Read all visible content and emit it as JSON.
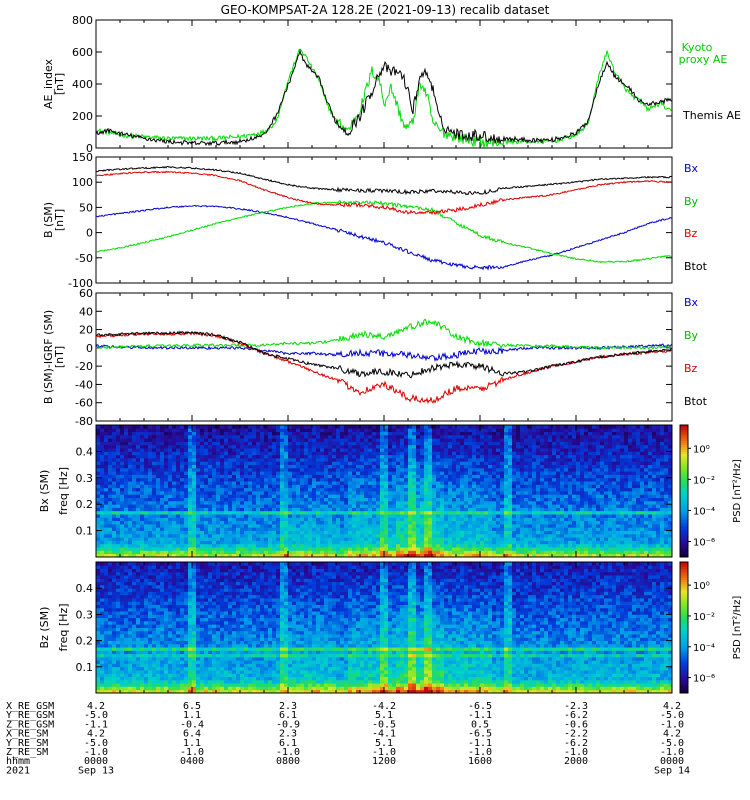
{
  "title": "GEO-KOMPSAT-2A 128.2E (2021-09-13) recalib dataset",
  "colors": {
    "black": "#000000",
    "green": "#00dd00",
    "red": "#dd0000",
    "blue": "#0000cc",
    "kyoto_label": "#00cc00",
    "by_label": "#00bb00",
    "bx_label": "#0000cc",
    "bz_label": "#dd0000"
  },
  "x_axis": {
    "range_hours": [
      0,
      24
    ],
    "tick_hours": [
      0,
      4,
      8,
      12,
      16,
      20,
      24
    ]
  },
  "ephemeris": {
    "rows": [
      {
        "label": "X_RE_GSM",
        "values": [
          "4.2",
          "6.5",
          "2.3",
          "-4.2",
          "-6.5",
          "-2.3",
          "4.2"
        ]
      },
      {
        "label": "Y_RE_GSM",
        "values": [
          "-5.0",
          "1.1",
          "6.1",
          "5.1",
          "-1.1",
          "-6.2",
          "-5.0"
        ]
      },
      {
        "label": "Z_RE_GSM",
        "values": [
          "-1.1",
          "-0.4",
          "-0.9",
          "-0.5",
          "0.5",
          "-0.6",
          "-1.0"
        ]
      },
      {
        "label": "X_RE_SM",
        "values": [
          "4.2",
          "6.4",
          "2.3",
          "-4.1",
          "-6.5",
          "-2.2",
          "4.2"
        ]
      },
      {
        "label": "Y_RE_SM",
        "values": [
          "-5.0",
          "1.1",
          "6.1",
          "5.1",
          "-1.1",
          "-6.2",
          "-5.0"
        ]
      },
      {
        "label": "Z_RE_SM",
        "values": [
          "-1.0",
          "-1.0",
          "-1.0",
          "-1.0",
          "-1.0",
          "-1.0",
          "-1.0"
        ]
      },
      {
        "label": "hhmm",
        "values": [
          "0000",
          "0400",
          "0800",
          "1200",
          "1600",
          "2000",
          "0000"
        ]
      }
    ],
    "year_label": "2021",
    "date_left": "Sep 13",
    "date_right": "Sep 14"
  },
  "chart_data": [
    {
      "type": "line",
      "ylabel": "AE_index",
      "yunit": "[nT]",
      "ylim": [
        0,
        800
      ],
      "yticks": [
        0,
        200,
        400,
        600,
        800
      ],
      "x_hours": [
        0,
        0.5,
        1,
        2,
        3,
        4,
        5,
        6,
        7,
        7.5,
        8,
        8.5,
        8.75,
        9,
        9.3,
        9.6,
        10,
        10.5,
        11,
        11.5,
        11.8,
        12,
        12.3,
        12.6,
        12.9,
        13.2,
        13.5,
        13.8,
        14,
        14.3,
        14.6,
        15,
        15.5,
        16,
        16.5,
        17,
        18,
        19,
        20,
        20.5,
        21,
        21.3,
        21.6,
        22,
        22.3,
        22.6,
        23,
        23.5,
        24
      ],
      "series": [
        {
          "name": "Kyoto proxy AE",
          "color": "#00dd00",
          "values": [
            110,
            100,
            80,
            70,
            60,
            60,
            60,
            70,
            100,
            160,
            420,
            620,
            570,
            500,
            420,
            280,
            170,
            110,
            240,
            480,
            430,
            280,
            380,
            240,
            120,
            160,
            410,
            330,
            170,
            110,
            90,
            70,
            50,
            40,
            30,
            40,
            40,
            40,
            80,
            150,
            480,
            600,
            480,
            380,
            330,
            300,
            240,
            280,
            220
          ]
        },
        {
          "name": "Themis AE",
          "color": "#000000",
          "values": [
            90,
            110,
            90,
            60,
            40,
            30,
            30,
            40,
            80,
            200,
            390,
            600,
            520,
            480,
            430,
            300,
            160,
            100,
            200,
            360,
            470,
            510,
            470,
            480,
            410,
            230,
            450,
            470,
            390,
            180,
            120,
            90,
            80,
            80,
            60,
            60,
            50,
            50,
            90,
            170,
            430,
            540,
            450,
            400,
            360,
            300,
            270,
            290,
            300
          ]
        }
      ]
    },
    {
      "type": "line",
      "ylabel": "B (SM)",
      "yunit": "[nT]",
      "ylim": [
        -100,
        150
      ],
      "yticks": [
        -100,
        -50,
        0,
        50,
        100,
        150
      ],
      "x_hours": [
        0,
        1,
        2,
        3,
        4,
        5,
        6,
        7,
        8,
        9,
        10,
        11,
        12,
        13,
        14,
        15,
        16,
        17,
        18,
        19,
        20,
        21,
        22,
        23,
        24
      ],
      "series": [
        {
          "name": "Bx",
          "color": "#0000cc",
          "values": [
            32,
            38,
            44,
            50,
            53,
            52,
            47,
            40,
            30,
            18,
            6,
            -8,
            -20,
            -38,
            -55,
            -65,
            -70,
            -68,
            -55,
            -45,
            -30,
            -15,
            0,
            18,
            30
          ]
        },
        {
          "name": "By",
          "color": "#00dd00",
          "values": [
            -38,
            -30,
            -20,
            -8,
            5,
            18,
            30,
            40,
            50,
            58,
            60,
            60,
            58,
            52,
            45,
            20,
            -5,
            -20,
            -30,
            -42,
            -52,
            -58,
            -58,
            -52,
            -45
          ]
        },
        {
          "name": "Bz",
          "color": "#dd0000",
          "values": [
            113,
            117,
            120,
            120,
            118,
            113,
            103,
            85,
            70,
            58,
            55,
            55,
            50,
            40,
            40,
            45,
            55,
            65,
            70,
            75,
            85,
            95,
            100,
            102,
            100
          ]
        },
        {
          "name": "Btot",
          "color": "#000000",
          "values": [
            122,
            126,
            128,
            130,
            128,
            124,
            118,
            106,
            95,
            88,
            85,
            84,
            83,
            80,
            83,
            80,
            78,
            88,
            92,
            96,
            100,
            106,
            108,
            110,
            110
          ]
        }
      ]
    },
    {
      "type": "line",
      "ylabel": "B (SM)-IGRF (SM)",
      "yunit": "[nT]",
      "ylim": [
        -80,
        60
      ],
      "yticks": [
        -80,
        -60,
        -40,
        -20,
        0,
        20,
        40,
        60
      ],
      "x_hours": [
        0,
        1,
        2,
        3,
        4,
        5,
        6,
        7,
        8,
        9,
        10,
        11,
        12,
        13,
        14,
        15,
        16,
        17,
        18,
        19,
        20,
        21,
        22,
        23,
        24
      ],
      "series": [
        {
          "name": "Bx",
          "color": "#0000cc",
          "values": [
            2,
            1,
            0,
            0,
            0,
            0,
            0,
            -3,
            -6,
            -6,
            -8,
            -5,
            -6,
            -8,
            -12,
            -8,
            -3,
            -3,
            0,
            0,
            0,
            0,
            1,
            2,
            3
          ]
        },
        {
          "name": "By",
          "color": "#00dd00",
          "values": [
            0,
            1,
            2,
            2,
            3,
            3,
            3,
            3,
            5,
            5,
            8,
            15,
            12,
            22,
            30,
            12,
            5,
            3,
            2,
            2,
            1,
            0,
            0,
            0,
            1
          ]
        },
        {
          "name": "Bz",
          "color": "#dd0000",
          "values": [
            12,
            14,
            15,
            15,
            16,
            13,
            5,
            -5,
            -15,
            -25,
            -35,
            -48,
            -40,
            -55,
            -58,
            -44,
            -45,
            -35,
            -27,
            -20,
            -15,
            -10,
            -7,
            -5,
            -3
          ]
        },
        {
          "name": "Btot",
          "color": "#000000",
          "values": [
            14,
            15,
            16,
            16,
            17,
            14,
            6,
            -6,
            -12,
            -18,
            -22,
            -28,
            -26,
            -30,
            -22,
            -18,
            -20,
            -28,
            -26,
            -20,
            -15,
            -10,
            -7,
            -4,
            -2
          ]
        }
      ]
    },
    {
      "type": "heatmap",
      "ylabel": "Bx (SM)",
      "yunit": "freq  [Hz]",
      "ylim": [
        0,
        0.5
      ],
      "yticks": [
        0.1,
        0.2,
        0.3,
        0.4
      ],
      "colorbar_label": "PSD  [nT²/Hz]",
      "colorbar_ticks": [
        "10⁰",
        "10⁻²",
        "10⁻⁴",
        "10⁻⁶"
      ],
      "colorbar_exponents": [
        0,
        -2,
        -4,
        -6
      ],
      "colorbar_range_log10": [
        -7,
        1.5
      ]
    },
    {
      "type": "heatmap",
      "ylabel": "Bz (SM)",
      "yunit": "freq  [Hz]",
      "ylim": [
        0,
        0.5
      ],
      "yticks": [
        0.1,
        0.2,
        0.3,
        0.4
      ],
      "colorbar_label": "PSD  [nT²/Hz]",
      "colorbar_ticks": [
        "10⁰",
        "10⁻²",
        "10⁻⁴",
        "10⁻⁶"
      ],
      "colorbar_exponents": [
        0,
        -2,
        -4,
        -6
      ],
      "colorbar_range_log10": [
        -7,
        1.5
      ]
    }
  ]
}
